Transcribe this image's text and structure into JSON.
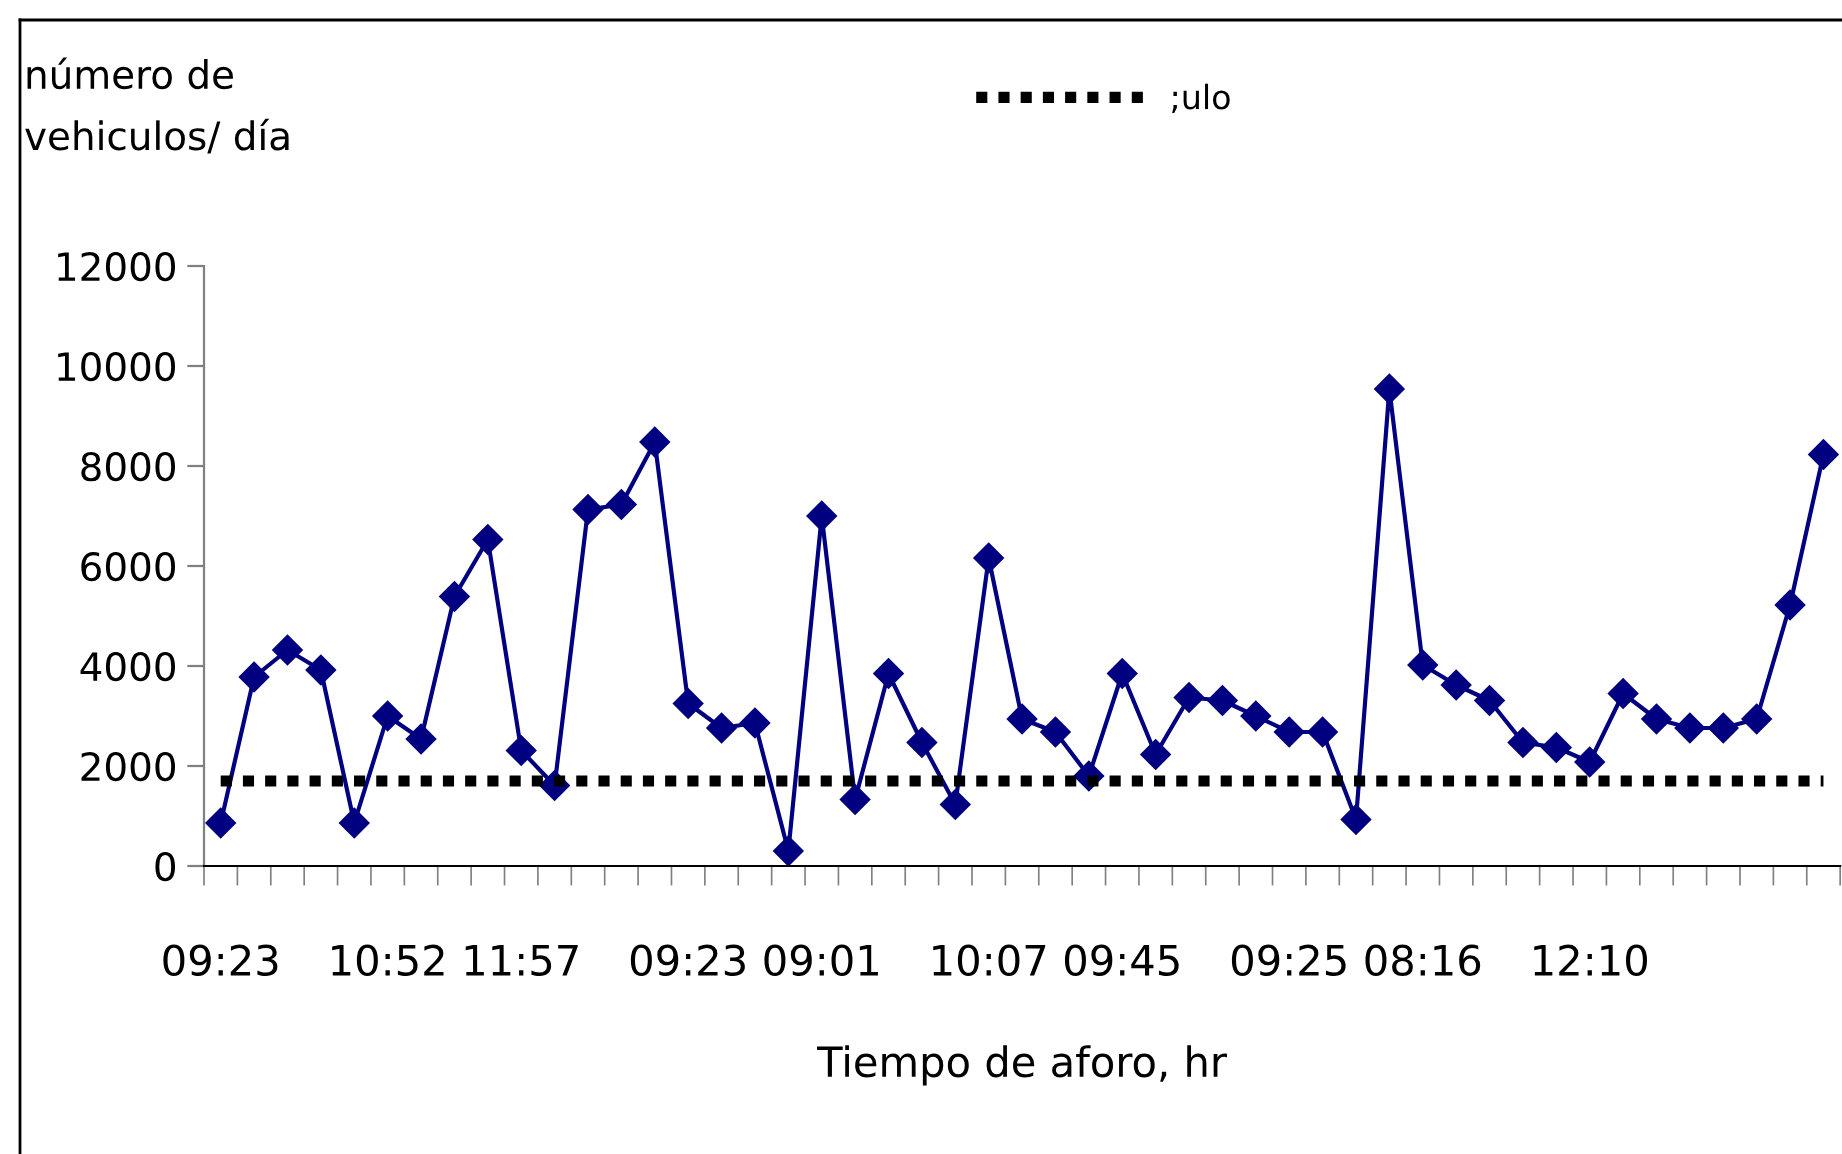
{
  "chart_data": {
    "type": "line",
    "ylabel": "número de\nvehiculos/ día",
    "xlabel": "Tiempo de aforo, hr",
    "categories": [
      "09:23",
      null,
      null,
      null,
      null,
      "10:52",
      null,
      null,
      null,
      "11:57",
      null,
      null,
      null,
      null,
      "09:23",
      null,
      null,
      null,
      "09:01",
      null,
      null,
      null,
      null,
      "10:07",
      null,
      null,
      null,
      "09:45",
      null,
      null,
      null,
      null,
      "09:25",
      null,
      null,
      null,
      "08:16",
      null,
      null,
      null,
      null,
      "12:10",
      null,
      null,
      null,
      null,
      null,
      null,
      null
    ],
    "series": [
      {
        "color": "#000080",
        "marker": "diamond",
        "line_style": "solid",
        "values": [
          860,
          3780,
          4320,
          3920,
          860,
          3000,
          2540,
          5390,
          6530,
          2310,
          1610,
          7130,
          7230,
          8480,
          3250,
          2760,
          2860,
          300,
          7000,
          1330,
          3850,
          2470,
          1230,
          6160,
          2940,
          2680,
          1800,
          3850,
          2230,
          3370,
          3310,
          3000,
          2680,
          2680,
          930,
          9540,
          4020,
          3620,
          3310,
          2470,
          2370,
          2080,
          3450,
          2940,
          2760,
          2760,
          2940,
          5220,
          8230
        ]
      },
      {
        "name": ";ulo",
        "color": "#000000",
        "marker": "none",
        "line_style": "dotted",
        "values": [
          1700,
          1700,
          1700,
          1700,
          1700,
          1700,
          1700,
          1700,
          1700,
          1700,
          1700,
          1700,
          1700,
          1700,
          1700,
          1700,
          1700,
          1700,
          1700,
          1700,
          1700,
          1700,
          1700,
          1700,
          1700,
          1700,
          1700,
          1700,
          1700,
          1700,
          1700,
          1700,
          1700,
          1700,
          1700,
          1700,
          1700,
          1700,
          1700,
          1700,
          1700,
          1700,
          1700,
          1700,
          1700,
          1700,
          1700,
          1700,
          1700
        ]
      }
    ],
    "ylim": [
      0,
      12000
    ],
    "yticks": [
      0,
      2000,
      4000,
      6000,
      8000,
      10000,
      12000
    ],
    "grid": false,
    "legend": "top"
  }
}
